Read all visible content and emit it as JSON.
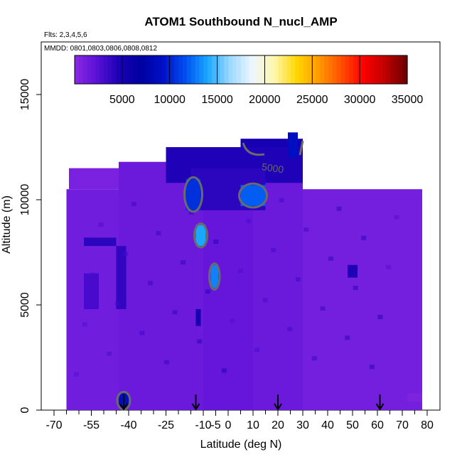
{
  "chart_data": {
    "type": "heatmap",
    "title": "ATOM1 Southbound N_nucl_AMP",
    "subtitle_flights": "Flts: 2,3,4,5,6",
    "subtitle_dates": "MMDD: 0801,0803,0806,0808,0812",
    "xlabel": "Latitude (deg N)",
    "ylabel": "Altitude (m)",
    "xlim": [
      -70,
      80
    ],
    "ylim": [
      0,
      17500
    ],
    "x_ticks": [
      -70,
      -55,
      -40,
      -25,
      -10,
      -5,
      0,
      10,
      20,
      30,
      40,
      50,
      60,
      70,
      80
    ],
    "y_ticks": [
      0,
      5000,
      10000,
      15000
    ],
    "colorbar": {
      "min": 0,
      "max": 35000,
      "ticks": [
        5000,
        10000,
        15000,
        20000,
        25000,
        30000,
        35000
      ],
      "colors": [
        "#8a2be2",
        "#5a10d8",
        "#1a00b4",
        "#0000a0",
        "#0010c8",
        "#0050f0",
        "#1aa8ff",
        "#9cd8ff",
        "#eef6ff",
        "#fff7b0",
        "#ffd800",
        "#ff9a00",
        "#ff5000",
        "#ff0000",
        "#c00000",
        "#6a0000"
      ]
    },
    "contour_label": "5000",
    "flight_markers_latitude": [
      -42,
      -13,
      20,
      61
    ],
    "background_value": 1500,
    "regions": [
      {
        "x": [
          -65,
          -44
        ],
        "y": [
          0,
          10500
        ],
        "value": 1200
      },
      {
        "x": [
          -64,
          -44
        ],
        "y": [
          10500,
          11500
        ],
        "value": 800
      },
      {
        "x": [
          -44,
          -10
        ],
        "y": [
          0,
          11800
        ],
        "value": 1500
      },
      {
        "x": [
          -10,
          10
        ],
        "y": [
          0,
          11800
        ],
        "value": 1800
      },
      {
        "x": [
          10,
          30
        ],
        "y": [
          0,
          12500
        ],
        "value": 1500
      },
      {
        "x": [
          30,
          78
        ],
        "y": [
          0,
          10500
        ],
        "value": 1000
      },
      {
        "x": [
          -25,
          30
        ],
        "y": [
          10800,
          12500
        ],
        "value": 4500
      },
      {
        "x": [
          -15,
          15
        ],
        "y": [
          9500,
          11500
        ],
        "value": 4000
      },
      {
        "x": [
          5,
          30
        ],
        "y": [
          12500,
          12900
        ],
        "value": 5000
      },
      {
        "x": [
          -17,
          -11
        ],
        "y": [
          9500,
          11000
        ],
        "value": 10500
      },
      {
        "x": [
          5,
          15
        ],
        "y": [
          9700,
          10700
        ],
        "value": 12000
      },
      {
        "x": [
          -13,
          -9
        ],
        "y": [
          7800,
          8800
        ],
        "value": 14000
      },
      {
        "x": [
          -7,
          -4
        ],
        "y": [
          5800,
          6900
        ],
        "value": 13000
      },
      {
        "x": [
          24,
          28
        ],
        "y": [
          12000,
          13200
        ],
        "value": 9000
      },
      {
        "x": [
          -44,
          -40
        ],
        "y": [
          100,
          800
        ],
        "value": 9000
      },
      {
        "x": [
          -58,
          -45
        ],
        "y": [
          7800,
          8200
        ],
        "value": 4000
      },
      {
        "x": [
          -45,
          -41
        ],
        "y": [
          4800,
          7800
        ],
        "value": 3800
      },
      {
        "x": [
          -58,
          -52
        ],
        "y": [
          4800,
          6500
        ],
        "value": 3000
      },
      {
        "x": [
          -13,
          -11
        ],
        "y": [
          4000,
          4800
        ],
        "value": 5000
      },
      {
        "x": [
          48,
          52
        ],
        "y": [
          6300,
          6900
        ],
        "value": 4500
      },
      {
        "x": [
          72,
          78
        ],
        "y": [
          400,
          800
        ],
        "value": 700
      }
    ]
  }
}
